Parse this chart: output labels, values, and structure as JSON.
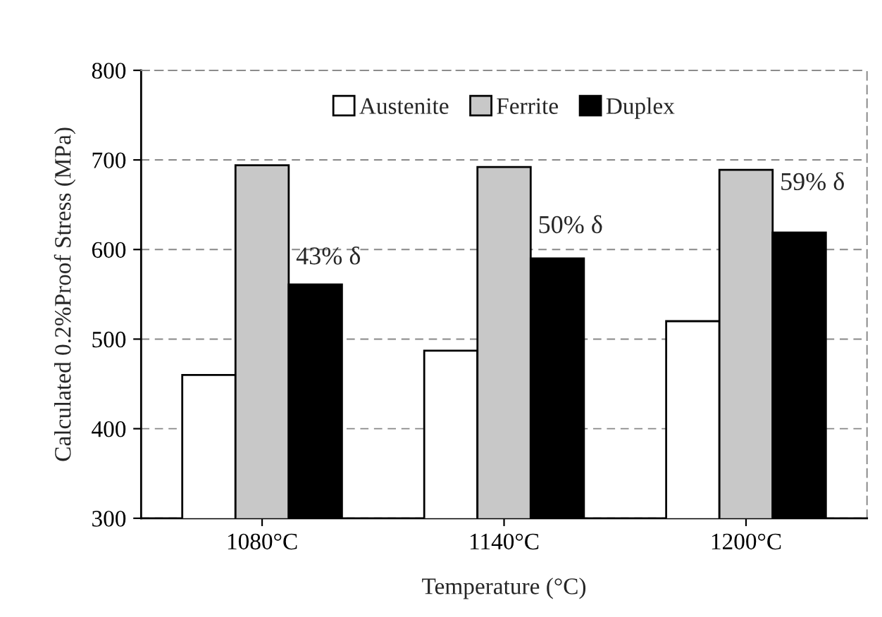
{
  "chart_data": {
    "type": "bar",
    "categories": [
      "1080°C",
      "1140°C",
      "1200°C"
    ],
    "series": [
      {
        "name": "Austenite",
        "color": "#ffffff",
        "values": [
          460,
          487,
          520
        ]
      },
      {
        "name": "Ferrite",
        "color": "#c8c8c8",
        "values": [
          694,
          692,
          689
        ]
      },
      {
        "name": "Duplex",
        "color": "#000000",
        "values": [
          561,
          590,
          619
        ]
      }
    ],
    "xlabel": "Temperature (°C)",
    "ylabel": "Calculated 0.2%Proof Stress (MPa)",
    "ylim": [
      300,
      800
    ],
    "yticks": [
      300,
      400,
      500,
      600,
      700,
      800
    ],
    "annotations": [
      "43% δ",
      "50% δ",
      "59% δ"
    ],
    "grid": "y",
    "legend": "top"
  }
}
